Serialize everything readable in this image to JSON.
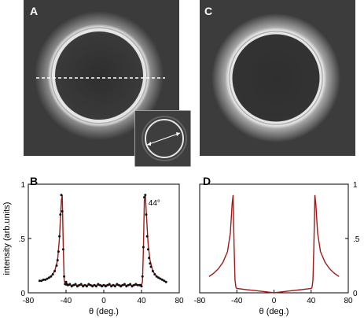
{
  "panels": {
    "a": {
      "label": "A"
    },
    "b": {
      "label": "B",
      "peak_annotation": "44°"
    },
    "c": {
      "label": "C"
    },
    "d": {
      "label": "D"
    }
  },
  "colors": {
    "fit_line": "#a01818",
    "data_points": "#111111",
    "image_background": "#3b3b3b"
  },
  "chart_data": [
    {
      "panel": "B",
      "type": "scatter",
      "title": "",
      "xlabel": "θ (deg.)",
      "ylabel": "intensity (arb.units)",
      "xlim": [
        -80,
        80
      ],
      "ylim": [
        0,
        1
      ],
      "xticks": [
        "-80",
        "-40",
        "0",
        "40",
        "80"
      ],
      "yticks": [
        "0",
        ".5",
        "1"
      ],
      "annotation": "44°",
      "series": [
        {
          "kind": "points",
          "x": [
            -68,
            -66,
            -64,
            -62,
            -60,
            -58,
            -56,
            -54,
            -52,
            -50,
            -49,
            -48,
            -47,
            -46,
            -45,
            -44,
            -43,
            -42,
            -41,
            -40,
            -39,
            -38,
            -36,
            -34,
            -32,
            -30,
            -28,
            -26,
            -24,
            -22,
            -20,
            -18,
            -16,
            -14,
            -12,
            -10,
            -8,
            -6,
            -4,
            -2,
            0,
            2,
            4,
            6,
            8,
            10,
            12,
            14,
            16,
            18,
            20,
            22,
            24,
            26,
            28,
            30,
            32,
            34,
            36,
            38,
            39,
            40,
            41,
            42,
            43,
            44,
            45,
            46,
            47,
            48,
            49,
            50,
            52,
            54,
            56,
            58,
            60,
            62,
            64,
            66
          ],
          "y": [
            0.11,
            0.11,
            0.12,
            0.12,
            0.13,
            0.14,
            0.15,
            0.17,
            0.2,
            0.25,
            0.3,
            0.38,
            0.52,
            0.72,
            0.9,
            0.75,
            0.4,
            0.15,
            0.08,
            0.1,
            0.08,
            0.07,
            0.08,
            0.06,
            0.07,
            0.08,
            0.06,
            0.07,
            0.08,
            0.06,
            0.07,
            0.06,
            0.08,
            0.07,
            0.06,
            0.07,
            0.06,
            0.08,
            0.07,
            0.06,
            0.07,
            0.06,
            0.07,
            0.08,
            0.06,
            0.07,
            0.06,
            0.08,
            0.07,
            0.06,
            0.07,
            0.08,
            0.06,
            0.07,
            0.08,
            0.06,
            0.07,
            0.08,
            0.07,
            0.07,
            0.07,
            0.06,
            0.15,
            0.42,
            0.88,
            0.9,
            0.72,
            0.52,
            0.4,
            0.32,
            0.27,
            0.24,
            0.2,
            0.17,
            0.15,
            0.14,
            0.13,
            0.12,
            0.11,
            0.1
          ]
        },
        {
          "kind": "fit",
          "x": [
            -68,
            -62,
            -56,
            -52,
            -49,
            -47,
            -45,
            -44,
            -43,
            -42,
            -41,
            -40,
            -36,
            -30,
            -20,
            -10,
            0,
            10,
            20,
            30,
            36,
            40,
            41,
            42,
            43,
            44,
            45,
            47,
            49,
            52,
            56,
            62,
            66
          ],
          "y": [
            0.11,
            0.12,
            0.15,
            0.2,
            0.3,
            0.5,
            0.85,
            0.9,
            0.45,
            0.12,
            0.08,
            0.07,
            0.07,
            0.07,
            0.07,
            0.07,
            0.07,
            0.07,
            0.07,
            0.07,
            0.07,
            0.07,
            0.1,
            0.4,
            0.85,
            0.9,
            0.75,
            0.45,
            0.3,
            0.2,
            0.15,
            0.12,
            0.1
          ]
        }
      ]
    },
    {
      "panel": "D",
      "type": "line",
      "title": "",
      "xlabel": "θ (deg.)",
      "ylabel": "",
      "xlim": [
        -80,
        80
      ],
      "ylim": [
        0,
        1
      ],
      "xticks": [
        "-80",
        "-40",
        "0",
        "40",
        "80"
      ],
      "yticks": [
        "0",
        ".5",
        "1"
      ],
      "series": [
        {
          "kind": "fit",
          "x": [
            -70,
            -65,
            -60,
            -55,
            -50,
            -47,
            -45,
            -44,
            -43,
            -42,
            -41,
            -40,
            -30,
            -20,
            -10,
            0,
            10,
            20,
            30,
            40,
            41,
            42,
            43,
            44,
            45,
            47,
            50,
            55,
            60,
            65,
            70
          ],
          "y": [
            0.15,
            0.18,
            0.22,
            0.28,
            0.38,
            0.55,
            0.82,
            0.9,
            0.45,
            0.12,
            0.05,
            0.04,
            0.03,
            0.02,
            0.01,
            0.0,
            0.01,
            0.02,
            0.03,
            0.04,
            0.05,
            0.12,
            0.45,
            0.9,
            0.82,
            0.55,
            0.38,
            0.28,
            0.22,
            0.18,
            0.15
          ]
        }
      ]
    }
  ]
}
